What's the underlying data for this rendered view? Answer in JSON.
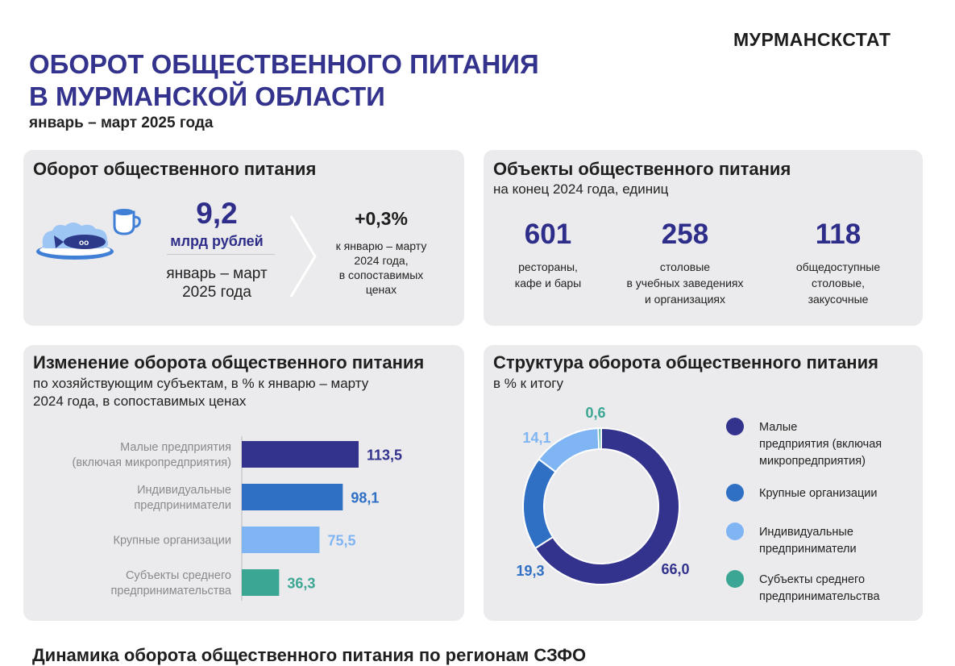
{
  "header": {
    "logo": "МУРМАНСКСТАТ",
    "title_line1": "ОБОРОТ ОБЩЕСТВЕННОГО ПИТАНИЯ",
    "title_line2": "В МУРМАНСКОЙ ОБЛАСТИ",
    "period": "январь – март 2025 года"
  },
  "turnover": {
    "title": "Оборот общественного питания",
    "value": "9,2",
    "unit": "млрд рублей",
    "period_line1": "январь – март",
    "period_line2": "2025 года",
    "change": "+0,3%",
    "change_desc_line1": "к январю – марту",
    "change_desc_line2": "2024 года,",
    "change_desc_line3": "в сопоставимых",
    "change_desc_line4": "ценах"
  },
  "objects": {
    "title": "Объекты общественного питания",
    "subtitle": "на конец 2024 года, единиц",
    "items": [
      {
        "value": "601",
        "line1": "рестораны,",
        "line2": "кафе и бары",
        "line3": ""
      },
      {
        "value": "258",
        "line1": "столовые",
        "line2": "в учебных заведениях",
        "line3": "и организациях"
      },
      {
        "value": "118",
        "line1": "общедоступные",
        "line2": "столовые,",
        "line3": "закусочные"
      }
    ]
  },
  "change_chart": {
    "title": "Изменение оборота общественного питания",
    "subtitle_line1": "по хозяйствующим  субъектам, в % к январю – марту",
    "subtitle_line2": "2024 года, в сопоставимых ценах"
  },
  "structure_chart": {
    "title": "Структура оборота общественного питания",
    "subtitle": "в % к итогу"
  },
  "bottom_heading": "Динамика оборота общественного питания по регионам СЗФО",
  "chart_data": [
    {
      "type": "bar",
      "orientation": "horizontal",
      "categories": [
        [
          "Малые предприятия",
          "(включая микропредприятия)"
        ],
        [
          "Индивидуальные",
          "предприниматели"
        ],
        [
          "Крупные организации"
        ],
        [
          "Субъекты среднего",
          "предпринимательства"
        ]
      ],
      "values": [
        113.5,
        98.1,
        75.5,
        36.3
      ],
      "value_labels": [
        "113,5",
        "98,1",
        "75,5",
        "36,3"
      ],
      "colors": [
        "#33338e",
        "#2f6fc4",
        "#7fb5f3",
        "#3aa693"
      ],
      "label_colors": [
        "#33338e",
        "#2f6fc4",
        "#7fb5f3",
        "#3aa693"
      ]
    },
    {
      "type": "pie",
      "donut": true,
      "values": [
        66.0,
        19.3,
        14.1,
        0.6
      ],
      "value_labels": [
        "66,0",
        "19,3",
        "14,1",
        "0,6"
      ],
      "labels": [
        [
          "Малые",
          "предприятия  (включая",
          "микропредприятия)"
        ],
        [
          "Крупные  организации"
        ],
        [
          "Индивидуальные",
          "предприниматели"
        ],
        [
          "Субъекты  среднего",
          "предпринимательства"
        ]
      ],
      "colors": [
        "#33338e",
        "#2f6fc4",
        "#7fb5f3",
        "#3aa693"
      ],
      "legend_position": "right"
    }
  ]
}
